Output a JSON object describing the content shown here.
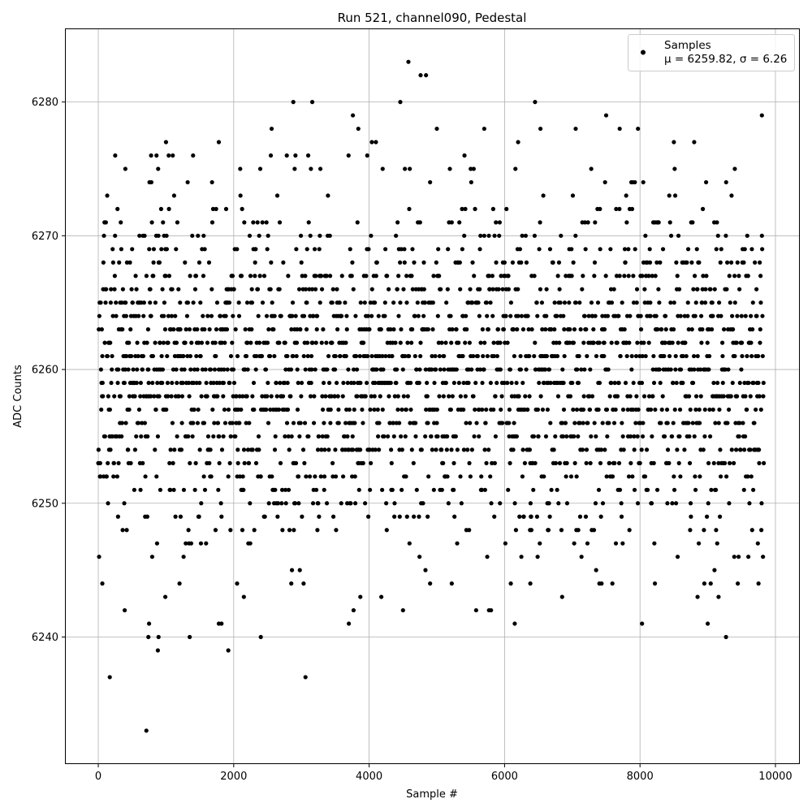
{
  "chart_data": {
    "type": "scatter",
    "title": "Run 521, channel090, Pedestal",
    "xlabel": "Sample #",
    "ylabel": "ADC Counts",
    "xlim": [
      -492,
      10360
    ],
    "ylim": [
      6230.5,
      6285.5
    ],
    "xticks": [
      0,
      2000,
      4000,
      6000,
      8000,
      10000
    ],
    "xtick_labels": [
      "0",
      "2000",
      "4000",
      "6000",
      "8000",
      "10000"
    ],
    "yticks": [
      6240,
      6250,
      6260,
      6270,
      6280
    ],
    "ytick_labels": [
      "6240",
      "6250",
      "6260",
      "6270",
      "6280"
    ],
    "grid": true,
    "marker_color": "#000000",
    "legend": {
      "placement": "top-right",
      "label": "Samples",
      "stats": "μ = 6259.82, σ = 6.26"
    },
    "series": [
      {
        "name": "Samples",
        "mean": 6259.82,
        "sigma": 6.26,
        "notable_points": [
          [
            170,
            6237
          ],
          [
            710,
            6233
          ],
          [
            750,
            6241
          ],
          [
            740,
            6240
          ],
          [
            880,
            6239
          ],
          [
            890,
            6240
          ],
          [
            1350,
            6240
          ],
          [
            1780,
            6241
          ],
          [
            1920,
            6239
          ],
          [
            2400,
            6240
          ],
          [
            3060,
            6237
          ],
          [
            3700,
            6241
          ],
          [
            6150,
            6241
          ],
          [
            8030,
            6241
          ],
          [
            9000,
            6241
          ],
          [
            9270,
            6240
          ],
          [
            2880,
            6280
          ],
          [
            3160,
            6280
          ],
          [
            4460,
            6280
          ],
          [
            6450,
            6280
          ],
          [
            4580,
            6283
          ],
          [
            4760,
            6282
          ],
          [
            4840,
            6282
          ],
          [
            3760,
            6279
          ],
          [
            7500,
            6279
          ],
          [
            9800,
            6279
          ],
          [
            2560,
            6278
          ],
          [
            3840,
            6278
          ],
          [
            5000,
            6278
          ],
          [
            5700,
            6278
          ],
          [
            6530,
            6278
          ],
          [
            7050,
            6278
          ],
          [
            7700,
            6278
          ],
          [
            7970,
            6278
          ],
          [
            1000,
            6277
          ],
          [
            1780,
            6277
          ],
          [
            4040,
            6277
          ],
          [
            4100,
            6277
          ],
          [
            6200,
            6277
          ],
          [
            8800,
            6277
          ],
          [
            8500,
            6277
          ],
          [
            250,
            6276
          ],
          [
            780,
            6276
          ],
          [
            860,
            6276
          ],
          [
            1100,
            6276
          ],
          [
            1400,
            6276
          ],
          [
            400,
            6275
          ],
          [
            2900,
            6275
          ],
          [
            4200,
            6275
          ],
          [
            5500,
            6275
          ],
          [
            9400,
            6275
          ],
          [
            390,
            6242
          ],
          [
            1820,
            6241
          ],
          [
            3770,
            6242
          ],
          [
            4500,
            6242
          ],
          [
            5580,
            6242
          ],
          [
            5770,
            6242
          ],
          [
            5800,
            6242
          ],
          [
            2050,
            6244
          ],
          [
            60,
            6244
          ],
          [
            1200,
            6244
          ],
          [
            2850,
            6244
          ],
          [
            4900,
            6244
          ],
          [
            5220,
            6244
          ],
          [
            6380,
            6244
          ],
          [
            7400,
            6244
          ],
          [
            8220,
            6244
          ],
          [
            8950,
            6244
          ],
          [
            9750,
            6244
          ],
          [
            6850,
            6243
          ],
          [
            8850,
            6243
          ],
          [
            9160,
            6243
          ],
          [
            990,
            6243
          ],
          [
            2150,
            6243
          ],
          [
            3870,
            6243
          ],
          [
            4180,
            6243
          ]
        ]
      }
    ]
  }
}
